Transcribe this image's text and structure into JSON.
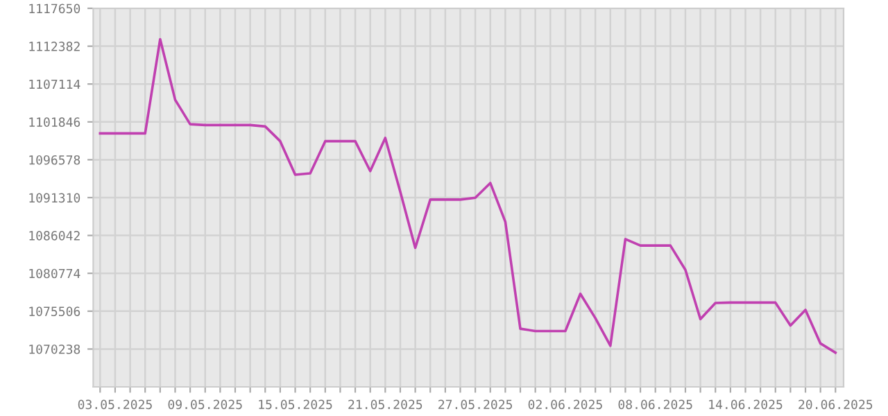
{
  "chart_data": {
    "type": "line",
    "x": [
      "2025-05-02",
      "2025-05-03",
      "2025-05-04",
      "2025-05-05",
      "2025-05-06",
      "2025-05-07",
      "2025-05-08",
      "2025-05-09",
      "2025-05-10",
      "2025-05-11",
      "2025-05-12",
      "2025-05-13",
      "2025-05-14",
      "2025-05-15",
      "2025-05-16",
      "2025-05-17",
      "2025-05-18",
      "2025-05-19",
      "2025-05-20",
      "2025-05-21",
      "2025-05-22",
      "2025-05-23",
      "2025-05-24",
      "2025-05-25",
      "2025-05-26",
      "2025-05-27",
      "2025-05-28",
      "2025-05-29",
      "2025-05-30",
      "2025-05-31",
      "2025-06-01",
      "2025-06-02",
      "2025-06-03",
      "2025-06-04",
      "2025-06-05",
      "2025-06-06",
      "2025-06-07",
      "2025-06-08",
      "2025-06-09",
      "2025-06-10",
      "2025-06-11",
      "2025-06-12",
      "2025-06-13",
      "2025-06-14",
      "2025-06-15",
      "2025-06-16",
      "2025-06-17",
      "2025-06-18",
      "2025-06-19",
      "2025-06-20"
    ],
    "series": [
      {
        "color": "#c040b0",
        "values": [
          1100250,
          1100250,
          1100250,
          1100250,
          1113360,
          1104920,
          1101530,
          1101400,
          1101400,
          1101400,
          1101400,
          1101210,
          1099160,
          1094490,
          1094680,
          1099160,
          1099160,
          1099160,
          1095000,
          1099610,
          1092120,
          1084320,
          1091030,
          1091030,
          1091030,
          1091290,
          1093340,
          1087950,
          1073060,
          1072740,
          1072740,
          1072740,
          1077920,
          1074530,
          1070690,
          1085530,
          1084640,
          1084640,
          1084640,
          1081250,
          1074400,
          1076640,
          1076700,
          1076700,
          1076700,
          1076700,
          1073500,
          1075680,
          1071010,
          1069730
        ]
      }
    ],
    "xlim": [
      "2025-05-01T13:00",
      "2025-06-20T13:00"
    ],
    "xticks": [
      {
        "value": "2025-05-02",
        "label": null
      },
      {
        "value": "2025-05-03",
        "label": "03.05.2025"
      },
      {
        "value": "2025-05-04",
        "label": null
      },
      {
        "value": "2025-05-05",
        "label": null
      },
      {
        "value": "2025-05-06",
        "label": null
      },
      {
        "value": "2025-05-07",
        "label": null
      },
      {
        "value": "2025-05-08",
        "label": null
      },
      {
        "value": "2025-05-09",
        "label": "09.05.2025"
      },
      {
        "value": "2025-05-10",
        "label": null
      },
      {
        "value": "2025-05-11",
        "label": null
      },
      {
        "value": "2025-05-12",
        "label": null
      },
      {
        "value": "2025-05-13",
        "label": null
      },
      {
        "value": "2025-05-14",
        "label": null
      },
      {
        "value": "2025-05-15",
        "label": "15.05.2025"
      },
      {
        "value": "2025-05-16",
        "label": null
      },
      {
        "value": "2025-05-17",
        "label": null
      },
      {
        "value": "2025-05-18",
        "label": null
      },
      {
        "value": "2025-05-19",
        "label": null
      },
      {
        "value": "2025-05-20",
        "label": null
      },
      {
        "value": "2025-05-21",
        "label": "21.05.2025"
      },
      {
        "value": "2025-05-22",
        "label": null
      },
      {
        "value": "2025-05-23",
        "label": null
      },
      {
        "value": "2025-05-24",
        "label": null
      },
      {
        "value": "2025-05-25",
        "label": null
      },
      {
        "value": "2025-05-26",
        "label": null
      },
      {
        "value": "2025-05-27",
        "label": "27.05.2025"
      },
      {
        "value": "2025-05-28",
        "label": null
      },
      {
        "value": "2025-05-29",
        "label": null
      },
      {
        "value": "2025-05-30",
        "label": null
      },
      {
        "value": "2025-05-31",
        "label": null
      },
      {
        "value": "2025-06-01",
        "label": null
      },
      {
        "value": "2025-06-02",
        "label": "02.06.2025"
      },
      {
        "value": "2025-06-03",
        "label": null
      },
      {
        "value": "2025-06-04",
        "label": null
      },
      {
        "value": "2025-06-05",
        "label": null
      },
      {
        "value": "2025-06-06",
        "label": null
      },
      {
        "value": "2025-06-07",
        "label": null
      },
      {
        "value": "2025-06-08",
        "label": "08.06.2025"
      },
      {
        "value": "2025-06-09",
        "label": null
      },
      {
        "value": "2025-06-10",
        "label": null
      },
      {
        "value": "2025-06-11",
        "label": null
      },
      {
        "value": "2025-06-12",
        "label": null
      },
      {
        "value": "2025-06-13",
        "label": null
      },
      {
        "value": "2025-06-14",
        "label": "14.06.2025"
      },
      {
        "value": "2025-06-15",
        "label": null
      },
      {
        "value": "2025-06-16",
        "label": null
      },
      {
        "value": "2025-06-17",
        "label": null
      },
      {
        "value": "2025-06-18",
        "label": null
      },
      {
        "value": "2025-06-19",
        "label": null
      },
      {
        "value": "2025-06-20",
        "label": "20.06.2025"
      }
    ],
    "ylim": [
      1064970,
      1117650
    ],
    "yticks": [
      1070238,
      1075506,
      1080774,
      1086042,
      1091310,
      1096578,
      1101846,
      1107114,
      1112382,
      1117650
    ],
    "grid": true,
    "marker": "none",
    "line_style": "solid"
  }
}
